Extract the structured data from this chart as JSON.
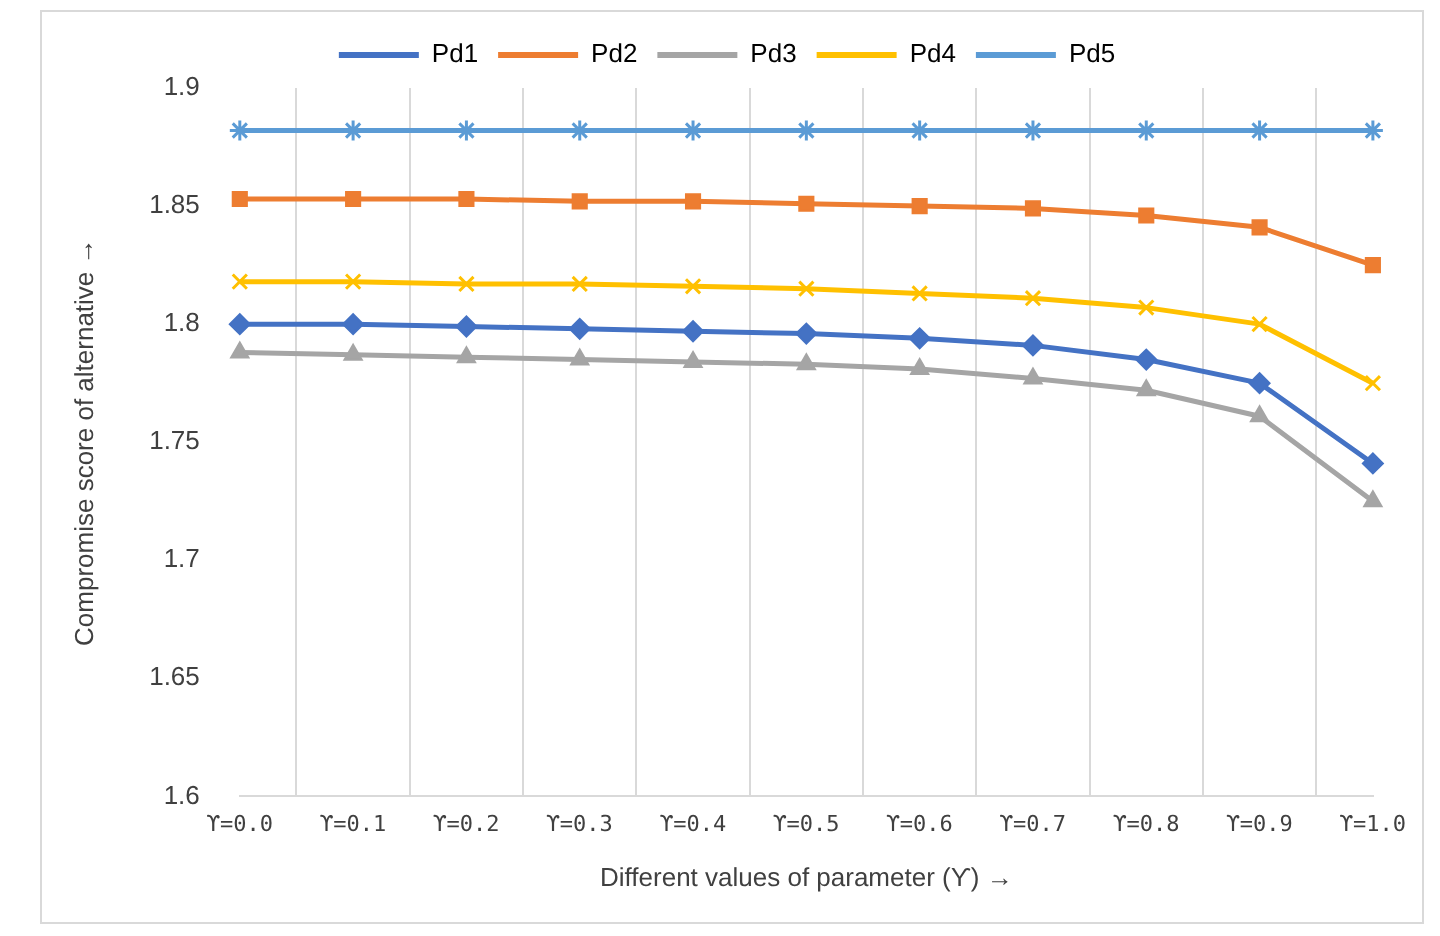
{
  "chart_data": {
    "type": "line",
    "xlabel": "Different values of parameter (ϒ) →",
    "ylabel": "Compromise score of alternative →",
    "categories": [
      "ϒ=0.0",
      "ϒ=0.1",
      "ϒ=0.2",
      "ϒ=0.3",
      "ϒ=0.4",
      "ϒ=0.5",
      "ϒ=0.6",
      "ϒ=0.7",
      "ϒ=0.8",
      "ϒ=0.9",
      "ϒ=1.0"
    ],
    "series": [
      {
        "name": "Pd1",
        "color": "#4472c4",
        "marker": "diamond",
        "values": [
          1.8,
          1.8,
          1.799,
          1.798,
          1.797,
          1.796,
          1.794,
          1.791,
          1.785,
          1.775,
          1.741
        ]
      },
      {
        "name": "Pd2",
        "color": "#ed7d31",
        "marker": "square",
        "values": [
          1.853,
          1.853,
          1.853,
          1.852,
          1.852,
          1.851,
          1.85,
          1.849,
          1.846,
          1.841,
          1.825
        ]
      },
      {
        "name": "Pd3",
        "color": "#a5a5a5",
        "marker": "triangle",
        "values": [
          1.788,
          1.787,
          1.786,
          1.785,
          1.784,
          1.783,
          1.781,
          1.777,
          1.772,
          1.761,
          1.725
        ]
      },
      {
        "name": "Pd4",
        "color": "#ffc000",
        "marker": "cross",
        "values": [
          1.818,
          1.818,
          1.817,
          1.817,
          1.816,
          1.815,
          1.813,
          1.811,
          1.807,
          1.8,
          1.775
        ]
      },
      {
        "name": "Pd5",
        "color": "#5b9bd5",
        "marker": "cross",
        "values": [
          1.882,
          1.882,
          1.882,
          1.882,
          1.882,
          1.882,
          1.882,
          1.882,
          1.882,
          1.882,
          1.882
        ]
      }
    ],
    "ylim": [
      1.6,
      1.9
    ],
    "yticks": [
      1.6,
      1.65,
      1.7,
      1.75,
      1.8,
      1.85,
      1.9
    ],
    "grid": "x",
    "legend": "top",
    "line_style": "solid"
  }
}
